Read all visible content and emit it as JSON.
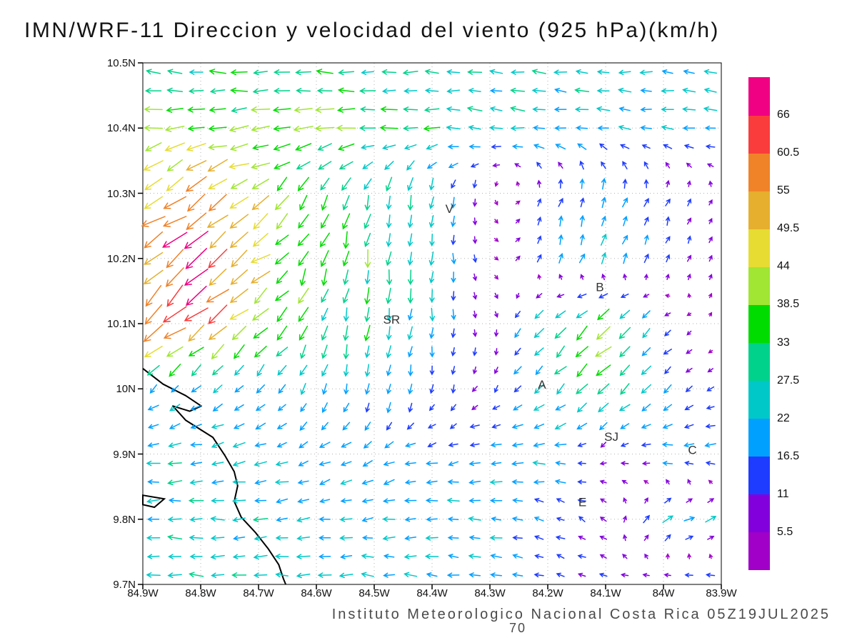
{
  "footer": {
    "credit": "Instituto Meteorologico Nacional Costa Rica 05Z19JUL2025",
    "page_number": "70"
  },
  "chart_data": {
    "type": "vector_field",
    "title": "IMN/WRF-11 Direccion y velocidad del viento (925 hPa)(km/h)",
    "xlabel": "",
    "ylabel": "",
    "grid": "dotted",
    "x_axis": {
      "ticks": [
        "84.9W",
        "84.8W",
        "84.7W",
        "84.6W",
        "84.5W",
        "84.4W",
        "84.3W",
        "84.2W",
        "84.1W",
        "84W",
        "83.9W"
      ],
      "range_deg_west": [
        84.9,
        83.9
      ]
    },
    "y_axis": {
      "ticks": [
        "10.5N",
        "10.4N",
        "10.3N",
        "10.2N",
        "10.1N",
        "10N",
        "9.9N",
        "9.8N",
        "9.7N"
      ],
      "range_deg_north": [
        9.7,
        10.5
      ]
    },
    "colorbar": {
      "units": "km/h",
      "labels_top_to_bottom": [
        "66",
        "60.5",
        "55",
        "49.5",
        "44",
        "38.5",
        "33",
        "27.5",
        "22",
        "16.5",
        "11",
        "5.5"
      ],
      "levels_kmh": [
        5.5,
        11,
        16.5,
        22,
        27.5,
        33,
        38.5,
        44,
        49.5,
        55,
        60.5,
        66
      ],
      "colors_bottom_to_top": [
        "#a000c8",
        "#8200dc",
        "#1e3cff",
        "#00a0ff",
        "#00c8c8",
        "#00d28c",
        "#00dc00",
        "#a0e632",
        "#e6dc32",
        "#e6af2d",
        "#f08228",
        "#fa3c3c",
        "#f00082"
      ]
    },
    "city_labels": [
      {
        "label": "V",
        "lon_w": 84.37,
        "lat_n": 10.27
      },
      {
        "label": "B",
        "lon_w": 84.11,
        "lat_n": 10.15
      },
      {
        "label": "SR",
        "lon_w": 84.47,
        "lat_n": 10.1
      },
      {
        "label": "A",
        "lon_w": 84.21,
        "lat_n": 10.0
      },
      {
        "label": "SJ",
        "lon_w": 84.09,
        "lat_n": 9.92
      },
      {
        "label": "C",
        "lon_w": 83.95,
        "lat_n": 9.9
      },
      {
        "label": "E",
        "lon_w": 84.14,
        "lat_n": 9.82
      }
    ],
    "coastline_fractions": {
      "main": [
        [
          0,
          0.586
        ],
        [
          0.035,
          0.616
        ],
        [
          0.074,
          0.638
        ],
        [
          0.101,
          0.658
        ],
        [
          0.081,
          0.668
        ],
        [
          0.052,
          0.658
        ],
        [
          0.074,
          0.685
        ],
        [
          0.121,
          0.718
        ],
        [
          0.142,
          0.753
        ],
        [
          0.158,
          0.784
        ],
        [
          0.164,
          0.811
        ],
        [
          0.158,
          0.841
        ],
        [
          0.17,
          0.871
        ],
        [
          0.195,
          0.901
        ],
        [
          0.217,
          0.932
        ],
        [
          0.235,
          0.962
        ],
        [
          0.243,
          0.989
        ],
        [
          0.247,
          1.0
        ]
      ],
      "peninsula": [
        [
          0,
          0.829
        ],
        [
          0.037,
          0.836
        ],
        [
          0.02,
          0.852
        ],
        [
          0,
          0.847
        ]
      ]
    },
    "wind_grid": {
      "lon_w": [
        84.9,
        84.8,
        84.7,
        84.6,
        84.5,
        84.4,
        84.3,
        84.2,
        84.1,
        84.0,
        83.9
      ],
      "lat_n": [
        10.5,
        10.4,
        10.3,
        10.2,
        10.1,
        10.0,
        9.9,
        9.8,
        9.7
      ],
      "u_kmh": [
        [
          -28,
          -30,
          -32,
          -30,
          -28,
          -27,
          -26,
          -25,
          -25,
          -24,
          -24
        ],
        [
          -36,
          -40,
          -40,
          -38,
          -34,
          -30,
          -27,
          -25,
          -23,
          -22,
          -22
        ],
        [
          -42,
          -46,
          -34,
          -18,
          -8,
          -4,
          2,
          5,
          7,
          5,
          3
        ],
        [
          -46,
          -52,
          -38,
          -14,
          -4,
          0,
          3,
          6,
          8,
          6,
          3
        ],
        [
          -48,
          -44,
          -28,
          -10,
          -3,
          -2,
          4,
          -22,
          -30,
          -10,
          4
        ],
        [
          -14,
          -17,
          -14,
          -8,
          -3,
          -2,
          -6,
          -18,
          -26,
          -14,
          -8
        ],
        [
          -24,
          -25,
          -22,
          -18,
          -16,
          -18,
          -20,
          -22,
          -6,
          -20,
          -22
        ],
        [
          -25,
          -26,
          -25,
          -22,
          -20,
          -22,
          -20,
          -14,
          -8,
          20,
          22
        ],
        [
          -24,
          -25,
          -25,
          -24,
          -22,
          -22,
          -20,
          -16,
          -10,
          -14,
          -18
        ]
      ],
      "v_kmh": [
        [
          2,
          2,
          1,
          1,
          0,
          0,
          0,
          1,
          1,
          1,
          1
        ],
        [
          -6,
          -5,
          -4,
          -2,
          0,
          2,
          3,
          3,
          2,
          2,
          2
        ],
        [
          -28,
          -32,
          -26,
          -26,
          -30,
          -24,
          -8,
          14,
          20,
          12,
          5
        ],
        [
          -36,
          -42,
          -30,
          -30,
          -34,
          -24,
          -4,
          16,
          20,
          12,
          6
        ],
        [
          -42,
          -38,
          -28,
          -30,
          -30,
          -22,
          -8,
          -20,
          -30,
          -9,
          3
        ],
        [
          -12,
          -12,
          -15,
          -20,
          -22,
          -14,
          -8,
          -18,
          -24,
          -12,
          -5
        ],
        [
          -1,
          -3,
          -5,
          -8,
          -8,
          -4,
          -3,
          0,
          -3,
          0,
          0
        ],
        [
          0,
          0,
          -2,
          -3,
          -3,
          0,
          2,
          4,
          8,
          12,
          6
        ],
        [
          1,
          1,
          1,
          1,
          2,
          2,
          3,
          3,
          2,
          0,
          0
        ]
      ]
    }
  }
}
